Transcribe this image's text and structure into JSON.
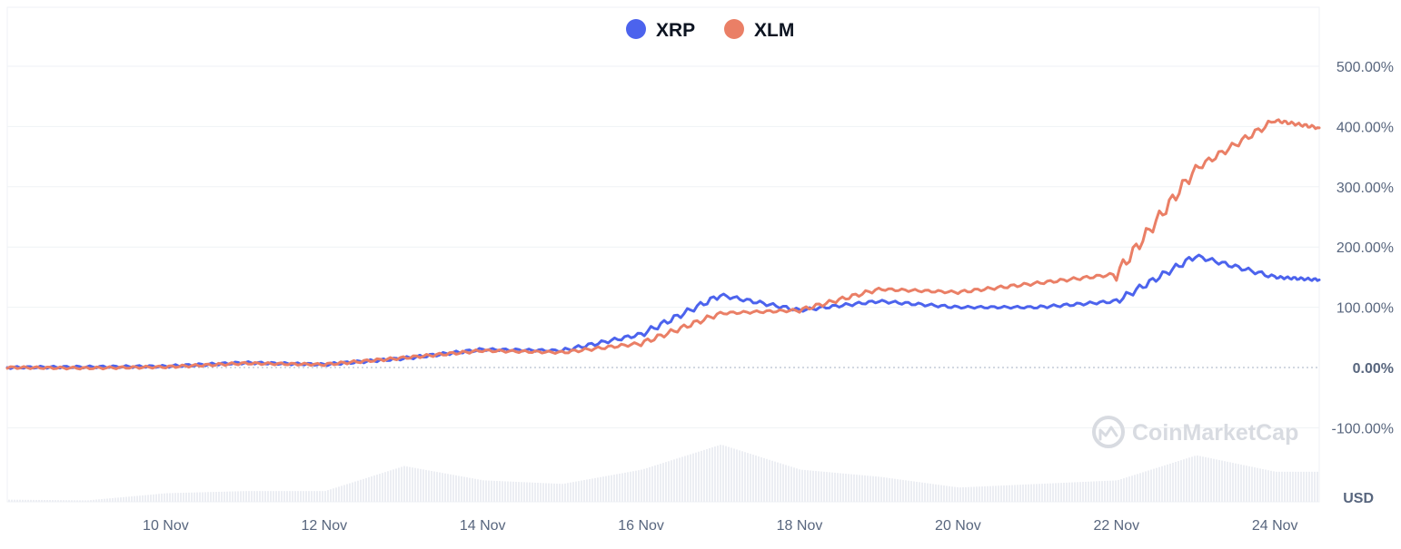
{
  "colors": {
    "xrp": "#4c63ed",
    "xlm": "#ea7f66",
    "grid": "#eff2f5",
    "volume": "#eceef3",
    "text": "#58667e"
  },
  "watermark": {
    "icon": "coinmarketcap-logo-icon",
    "text": "CoinMarketCap"
  },
  "chart_data": {
    "type": "line",
    "title": "",
    "legend": {
      "position": "top-center"
    },
    "ylabel_unit": "USD",
    "ylim": [
      -100,
      500
    ],
    "y_ticks": [
      {
        "value": -100,
        "label": "-100.00%"
      },
      {
        "value": 0,
        "label": "0.00%"
      },
      {
        "value": 100,
        "label": "100.00%"
      },
      {
        "value": 200,
        "label": "200.00%"
      },
      {
        "value": 300,
        "label": "300.00%"
      },
      {
        "value": 400,
        "label": "400.00%"
      },
      {
        "value": 500,
        "label": "500.00%"
      }
    ],
    "x_range": [
      "2024-11-08",
      "2024-11-24"
    ],
    "x_ticks": [
      {
        "value": "2024-11-10",
        "label": "10 Nov"
      },
      {
        "value": "2024-11-12",
        "label": "12 Nov"
      },
      {
        "value": "2024-11-14",
        "label": "14 Nov"
      },
      {
        "value": "2024-11-16",
        "label": "16 Nov"
      },
      {
        "value": "2024-11-18",
        "label": "18 Nov"
      },
      {
        "value": "2024-11-20",
        "label": "20 Nov"
      },
      {
        "value": "2024-11-22",
        "label": "22 Nov"
      },
      {
        "value": "2024-11-24",
        "label": "24 Nov"
      }
    ],
    "x": [
      "2024-11-08",
      "2024-11-09",
      "2024-11-10",
      "2024-11-11",
      "2024-11-12",
      "2024-11-13",
      "2024-11-14",
      "2024-11-15",
      "2024-11-16",
      "2024-11-17",
      "2024-11-18",
      "2024-11-19",
      "2024-11-20",
      "2024-11-21",
      "2024-11-22",
      "2024-11-23",
      "2024-11-24"
    ],
    "series": [
      {
        "name": "XRP",
        "values": [
          0,
          1,
          2,
          8,
          5,
          15,
          30,
          28,
          55,
          120,
          95,
          110,
          100,
          100,
          110,
          185,
          150
        ]
      },
      {
        "name": "XLM",
        "values": [
          0,
          -1,
          1,
          7,
          5,
          16,
          28,
          25,
          40,
          90,
          95,
          130,
          125,
          140,
          155,
          330,
          410
        ]
      }
    ],
    "volume_bars": {
      "description_unit": "relative",
      "x": [
        "2024-11-08",
        "2024-11-09",
        "2024-11-10",
        "2024-11-11",
        "2024-11-12",
        "2024-11-13",
        "2024-11-14",
        "2024-11-15",
        "2024-11-16",
        "2024-11-17",
        "2024-11-18",
        "2024-11-19",
        "2024-11-20",
        "2024-11-21",
        "2024-11-22",
        "2024-11-23",
        "2024-11-24"
      ],
      "values": [
        0.03,
        0.02,
        0.12,
        0.15,
        0.15,
        0.5,
        0.3,
        0.25,
        0.45,
        0.8,
        0.45,
        0.35,
        0.2,
        0.25,
        0.3,
        0.65,
        0.42
      ]
    }
  }
}
